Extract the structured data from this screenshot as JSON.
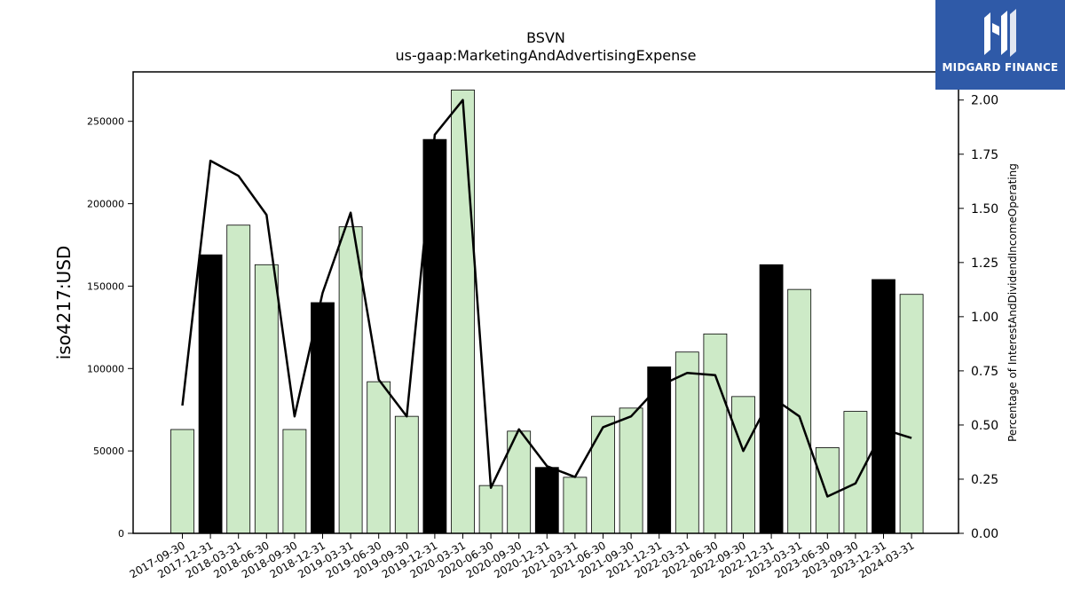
{
  "chart_data": {
    "type": "bar",
    "title": "BSVN",
    "subtitle": "us-gaap:MarketingAndAdvertisingExpense",
    "ylabel": "iso4217:USD",
    "ylabel_right": "Percentage of InterestAndDividendIncomeOperating",
    "ylim": [
      0,
      280000
    ],
    "ylim_right": [
      0,
      2.13
    ],
    "yticks": [
      0,
      50000,
      100000,
      150000,
      200000,
      250000
    ],
    "yticks_right": [
      "0.00",
      "0.25",
      "0.50",
      "0.75",
      "1.00",
      "1.25",
      "1.50",
      "1.75",
      "2.00"
    ],
    "categories": [
      "2017-09-30",
      "2017-12-31",
      "2018-03-31",
      "2018-06-30",
      "2018-09-30",
      "2018-12-31",
      "2019-03-31",
      "2019-06-30",
      "2019-09-30",
      "2019-12-31",
      "2020-03-31",
      "2020-06-30",
      "2020-09-30",
      "2020-12-31",
      "2021-03-31",
      "2021-06-30",
      "2021-09-30",
      "2021-12-31",
      "2022-03-31",
      "2022-06-30",
      "2022-09-30",
      "2022-12-31",
      "2023-03-31",
      "2023-06-30",
      "2023-09-30",
      "2023-12-31",
      "2024-03-31"
    ],
    "values": [
      63000,
      169000,
      187000,
      163000,
      63000,
      140000,
      186000,
      92000,
      71000,
      239000,
      269000,
      29000,
      62000,
      40000,
      34000,
      71000,
      76000,
      101000,
      110000,
      121000,
      83000,
      163000,
      148000,
      52000,
      74000,
      154000,
      145000
    ],
    "highlight": [
      false,
      true,
      false,
      false,
      false,
      true,
      false,
      false,
      false,
      true,
      false,
      false,
      false,
      true,
      false,
      false,
      false,
      true,
      false,
      false,
      false,
      true,
      false,
      false,
      false,
      true,
      false
    ],
    "line_values": [
      0.59,
      1.72,
      1.65,
      1.47,
      0.54,
      1.11,
      1.48,
      0.71,
      0.54,
      1.84,
      2.0,
      0.21,
      0.48,
      0.31,
      0.26,
      0.49,
      0.54,
      0.68,
      0.74,
      0.73,
      0.38,
      0.63,
      0.54,
      0.17,
      0.23,
      0.48,
      0.44
    ],
    "colors": {
      "bar": "#cdeac7",
      "bar_highlight": "#000000",
      "line": "#000000"
    }
  },
  "logo": {
    "text": "MIDGARD FINANCE",
    "color": "#2f5aa8"
  }
}
